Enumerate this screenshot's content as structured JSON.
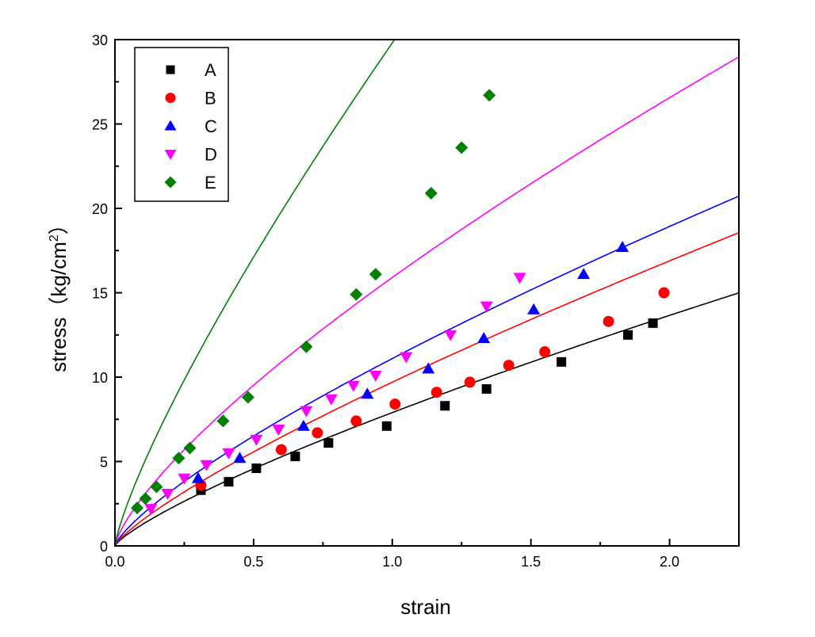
{
  "chart_data": {
    "type": "scatter",
    "title": "",
    "xlabel": "strain",
    "ylabel": "stress（kg/cm",
    "ylabel_sup": "2",
    "ylabel_close": "）",
    "xlim": [
      0,
      2.25
    ],
    "ylim": [
      0,
      30
    ],
    "xticks": [
      0,
      0.5,
      1.0,
      1.5,
      2.0
    ],
    "xtick_labels": [
      "0.0",
      "0.5",
      "1.0",
      "1.5",
      "2.0"
    ],
    "yticks": [
      0,
      5,
      10,
      15,
      20,
      25,
      30
    ],
    "ytick_labels": [
      "0",
      "5",
      "10",
      "15",
      "20",
      "25",
      "30"
    ],
    "grid": false,
    "legend_position": "top-left",
    "series": [
      {
        "name": "A",
        "marker": "square",
        "color": "#000000",
        "x": [
          0.31,
          0.41,
          0.51,
          0.65,
          0.77,
          0.98,
          1.19,
          1.34,
          1.61,
          1.85,
          1.94
        ],
        "y": [
          3.3,
          3.8,
          4.6,
          5.3,
          6.1,
          7.1,
          8.3,
          9.3,
          10.9,
          12.5,
          13.2
        ],
        "fit": {
          "a": 7.9,
          "b": 0.79
        }
      },
      {
        "name": "B",
        "marker": "circle",
        "color": "#ff0000",
        "x": [
          0.31,
          0.6,
          0.73,
          0.87,
          1.01,
          1.16,
          1.28,
          1.42,
          1.55,
          1.78,
          1.98
        ],
        "y": [
          3.6,
          5.7,
          6.7,
          7.4,
          8.4,
          9.1,
          9.7,
          10.7,
          11.5,
          13.3,
          15.0
        ],
        "fit": {
          "a": 9.7,
          "b": 0.8
        }
      },
      {
        "name": "C",
        "marker": "triangle-up",
        "color": "#0000ff",
        "x": [
          0.3,
          0.45,
          0.68,
          0.91,
          1.13,
          1.33,
          1.51,
          1.69,
          1.83
        ],
        "y": [
          4.0,
          5.2,
          7.1,
          9.0,
          10.5,
          12.3,
          14.0,
          16.1,
          17.7
        ],
        "fit": {
          "a": 11.1,
          "b": 0.77
        }
      },
      {
        "name": "D",
        "marker": "triangle-down",
        "color": "#ff00ff",
        "x": [
          0.13,
          0.19,
          0.25,
          0.33,
          0.41,
          0.51,
          0.59,
          0.69,
          0.78,
          0.86,
          0.94,
          1.05,
          1.21,
          1.34,
          1.46
        ],
        "y": [
          2.2,
          3.1,
          4.0,
          4.8,
          5.5,
          6.3,
          6.9,
          8.0,
          8.7,
          9.5,
          10.1,
          11.2,
          12.5,
          14.2,
          15.9
        ],
        "fit": {
          "a": 15.9,
          "b": 0.74
        }
      },
      {
        "name": "E",
        "marker": "diamond",
        "color": "#008000",
        "x": [
          0.08,
          0.11,
          0.15,
          0.23,
          0.27,
          0.39,
          0.48,
          0.69,
          0.87,
          0.94,
          1.14,
          1.25,
          1.35
        ],
        "y": [
          2.25,
          2.8,
          3.5,
          5.2,
          5.8,
          7.4,
          8.8,
          11.8,
          14.9,
          16.1,
          20.9,
          23.6,
          26.7
        ],
        "fit": {
          "a": 29.8,
          "b": 0.8
        }
      }
    ]
  }
}
